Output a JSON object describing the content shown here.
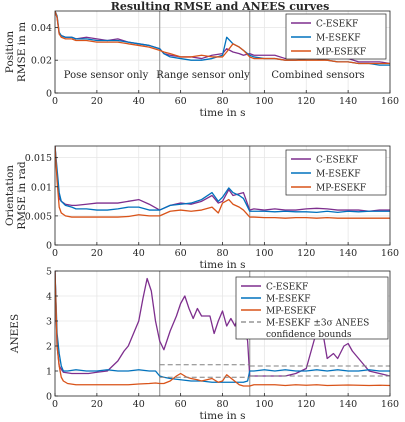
{
  "figure": {
    "title": "Resulting RMSE and ANEES curves"
  },
  "colors": {
    "C-ESEKF": "#7e2f8e",
    "M-ESEKF": "#0072bd",
    "MP-ESEKF": "#d95319",
    "bound": "#808080",
    "divider": "#a0a0a0"
  },
  "chart_data": [
    {
      "type": "line",
      "xlabel": "time in s",
      "ylabel": [
        "Position",
        "RMSE in m"
      ],
      "xlim": [
        0,
        160
      ],
      "ylim": [
        0,
        0.05
      ],
      "xticks": [
        0,
        20,
        40,
        60,
        80,
        100,
        120,
        140,
        160
      ],
      "yticks": [
        0,
        0.02,
        0.04
      ],
      "ytick_labels": [
        "0",
        "0.02",
        "0.04"
      ],
      "grid": true,
      "legend_position": "top-right",
      "dividers_x": [
        50,
        93
      ],
      "annotations": [
        {
          "text": "Pose sensor only",
          "x": 25,
          "y": 0.009
        },
        {
          "text": "Range sensor only",
          "x": 72,
          "y": 0.009
        },
        {
          "text": "Combined sensors",
          "x": 126,
          "y": 0.009
        }
      ],
      "series": [
        {
          "name": "C-ESEKF",
          "x": [
            0,
            1,
            2,
            3,
            5,
            8,
            10,
            15,
            20,
            25,
            30,
            35,
            40,
            45,
            50,
            52,
            55,
            60,
            65,
            70,
            75,
            80,
            82,
            85,
            88,
            90,
            93,
            95,
            100,
            105,
            110,
            115,
            120,
            125,
            130,
            135,
            140,
            145,
            150,
            155,
            160
          ],
          "y": [
            0.052,
            0.046,
            0.036,
            0.035,
            0.034,
            0.034,
            0.033,
            0.034,
            0.033,
            0.032,
            0.033,
            0.031,
            0.03,
            0.029,
            0.027,
            0.024,
            0.023,
            0.022,
            0.022,
            0.021,
            0.023,
            0.024,
            0.027,
            0.025,
            0.024,
            0.023,
            0.024,
            0.023,
            0.023,
            0.023,
            0.021,
            0.023,
            0.024,
            0.026,
            0.025,
            0.023,
            0.021,
            0.019,
            0.019,
            0.019,
            0.018
          ]
        },
        {
          "name": "M-ESEKF",
          "x": [
            0,
            1,
            2,
            3,
            5,
            8,
            10,
            15,
            20,
            25,
            30,
            35,
            40,
            45,
            50,
            52,
            55,
            60,
            65,
            70,
            75,
            80,
            82,
            85,
            88,
            90,
            93,
            95,
            100,
            105,
            110,
            115,
            120,
            125,
            130,
            135,
            140,
            145,
            150,
            155,
            160
          ],
          "y": [
            0.055,
            0.047,
            0.037,
            0.035,
            0.034,
            0.034,
            0.033,
            0.033,
            0.032,
            0.032,
            0.032,
            0.031,
            0.03,
            0.029,
            0.027,
            0.024,
            0.022,
            0.021,
            0.02,
            0.02,
            0.021,
            0.023,
            0.034,
            0.03,
            0.028,
            0.026,
            0.023,
            0.022,
            0.021,
            0.021,
            0.02,
            0.02,
            0.021,
            0.021,
            0.02,
            0.019,
            0.019,
            0.018,
            0.018,
            0.017,
            0.017
          ]
        },
        {
          "name": "MP-ESEKF",
          "x": [
            0,
            1,
            2,
            3,
            5,
            8,
            10,
            15,
            20,
            25,
            30,
            35,
            40,
            45,
            50,
            52,
            55,
            60,
            65,
            70,
            75,
            80,
            82,
            85,
            88,
            90,
            93,
            95,
            100,
            105,
            110,
            115,
            120,
            125,
            130,
            135,
            140,
            145,
            150,
            155,
            160
          ],
          "y": [
            0.054,
            0.046,
            0.036,
            0.034,
            0.033,
            0.033,
            0.032,
            0.032,
            0.031,
            0.031,
            0.031,
            0.03,
            0.029,
            0.028,
            0.026,
            0.025,
            0.024,
            0.022,
            0.022,
            0.023,
            0.022,
            0.022,
            0.025,
            0.03,
            0.028,
            0.026,
            0.022,
            0.021,
            0.021,
            0.021,
            0.02,
            0.02,
            0.02,
            0.02,
            0.02,
            0.019,
            0.019,
            0.018,
            0.018,
            0.018,
            0.018
          ]
        }
      ]
    },
    {
      "type": "line",
      "xlabel": "time in s",
      "ylabel": [
        "Orientation",
        "RMSE in rad"
      ],
      "xlim": [
        0,
        160
      ],
      "ylim": [
        0,
        0.017
      ],
      "xticks": [
        0,
        20,
        40,
        60,
        80,
        100,
        120,
        140,
        160
      ],
      "yticks": [
        0,
        0.005,
        0.01,
        0.015
      ],
      "ytick_labels": [
        "0",
        "0.005",
        "0.01",
        "0.015"
      ],
      "grid": true,
      "legend_position": "top-right",
      "dividers_x": [
        50,
        93
      ],
      "series": [
        {
          "name": "C-ESEKF",
          "x": [
            0,
            1,
            2,
            3,
            5,
            8,
            10,
            15,
            20,
            25,
            30,
            35,
            40,
            45,
            50,
            55,
            60,
            65,
            70,
            75,
            78,
            80,
            83,
            85,
            88,
            90,
            93,
            95,
            100,
            105,
            110,
            115,
            120,
            125,
            130,
            135,
            140,
            145,
            150,
            155,
            160
          ],
          "y": [
            0.017,
            0.012,
            0.008,
            0.0075,
            0.007,
            0.0068,
            0.0068,
            0.007,
            0.0072,
            0.0072,
            0.0072,
            0.0075,
            0.0078,
            0.007,
            0.006,
            0.0068,
            0.0072,
            0.007,
            0.0075,
            0.0085,
            0.0072,
            0.0075,
            0.0095,
            0.0085,
            0.0088,
            0.009,
            0.006,
            0.0062,
            0.006,
            0.0062,
            0.006,
            0.006,
            0.0062,
            0.0063,
            0.0062,
            0.006,
            0.006,
            0.006,
            0.0058,
            0.006,
            0.006
          ]
        },
        {
          "name": "M-ESEKF",
          "x": [
            0,
            1,
            2,
            3,
            5,
            8,
            10,
            15,
            20,
            25,
            30,
            35,
            40,
            45,
            50,
            55,
            60,
            65,
            70,
            75,
            78,
            80,
            83,
            85,
            88,
            90,
            93,
            95,
            100,
            105,
            110,
            115,
            120,
            125,
            130,
            135,
            140,
            145,
            150,
            155,
            160
          ],
          "y": [
            0.017,
            0.013,
            0.009,
            0.0075,
            0.0068,
            0.0065,
            0.0062,
            0.0062,
            0.006,
            0.006,
            0.0062,
            0.0065,
            0.0065,
            0.006,
            0.006,
            0.0068,
            0.007,
            0.0072,
            0.0078,
            0.009,
            0.0075,
            0.0082,
            0.0098,
            0.009,
            0.0085,
            0.008,
            0.0058,
            0.0058,
            0.0058,
            0.0057,
            0.0058,
            0.0057,
            0.0057,
            0.0056,
            0.0058,
            0.0056,
            0.0058,
            0.0057,
            0.0058,
            0.0058,
            0.0058
          ]
        },
        {
          "name": "MP-ESEKF",
          "x": [
            0,
            1,
            2,
            3,
            5,
            8,
            10,
            15,
            20,
            25,
            30,
            35,
            40,
            45,
            50,
            55,
            60,
            65,
            70,
            75,
            78,
            80,
            83,
            85,
            88,
            90,
            93,
            95,
            100,
            105,
            110,
            115,
            120,
            125,
            130,
            135,
            140,
            145,
            150,
            155,
            160
          ],
          "y": [
            0.017,
            0.011,
            0.0065,
            0.0055,
            0.005,
            0.0048,
            0.0048,
            0.0048,
            0.0048,
            0.0048,
            0.0048,
            0.0049,
            0.0052,
            0.005,
            0.005,
            0.0058,
            0.006,
            0.0058,
            0.006,
            0.0065,
            0.0055,
            0.0072,
            0.0078,
            0.007,
            0.0065,
            0.006,
            0.0048,
            0.0048,
            0.0047,
            0.0047,
            0.0046,
            0.0047,
            0.0047,
            0.0046,
            0.0047,
            0.0046,
            0.0046,
            0.0046,
            0.0046,
            0.0046,
            0.0046
          ]
        }
      ]
    },
    {
      "type": "line",
      "xlabel": "time in s",
      "ylabel": [
        "ANEES"
      ],
      "xlim": [
        0,
        160
      ],
      "ylim": [
        0,
        5
      ],
      "xticks": [
        0,
        20,
        40,
        60,
        80,
        100,
        120,
        140,
        160
      ],
      "yticks": [
        0,
        1,
        2,
        3,
        4,
        5
      ],
      "ytick_labels": [
        "0",
        "1",
        "2",
        "3",
        "4",
        "5"
      ],
      "grid": true,
      "legend_position": "top-right",
      "dividers_x": [
        50,
        93
      ],
      "confidence_bounds": {
        "name": "M-ESEKF ±3σ ANEES",
        "name2": "confidence bounds",
        "segments": [
          {
            "x": [
              50,
              93
            ],
            "y_upper": 1.25,
            "y_lower": 0.75
          },
          {
            "x": [
              93,
              160
            ],
            "y_upper": 1.2,
            "y_lower": 0.8
          }
        ]
      },
      "series": [
        {
          "name": "C-ESEKF",
          "x": [
            0,
            1,
            2,
            4,
            8,
            12,
            16,
            20,
            25,
            30,
            33,
            35,
            38,
            40,
            42,
            44,
            46,
            48,
            50,
            52,
            55,
            58,
            60,
            62,
            64,
            66,
            68,
            70,
            72,
            74,
            76,
            78,
            80,
            82,
            84,
            86,
            88,
            90,
            92,
            93,
            95,
            100,
            105,
            110,
            115,
            120,
            124,
            126,
            128,
            130,
            133,
            135,
            138,
            140,
            142,
            145,
            150,
            155,
            160
          ],
          "y": [
            5,
            2.0,
            1.2,
            0.95,
            0.9,
            0.9,
            0.9,
            0.95,
            1.0,
            1.4,
            1.8,
            2.0,
            2.6,
            3.0,
            3.9,
            4.7,
            4.2,
            3.0,
            2.2,
            1.85,
            2.6,
            3.2,
            3.7,
            4.0,
            3.5,
            3.1,
            3.5,
            3.2,
            3.2,
            3.2,
            2.5,
            3.0,
            3.4,
            2.8,
            3.1,
            2.8,
            3.4,
            2.9,
            2.2,
            0.8,
            0.8,
            0.8,
            0.8,
            0.8,
            0.9,
            1.1,
            2.3,
            3.0,
            2.5,
            1.5,
            1.7,
            1.5,
            2.0,
            2.1,
            1.8,
            1.5,
            1.0,
            0.9,
            0.8
          ]
        },
        {
          "name": "M-ESEKF",
          "x": [
            0,
            1,
            2,
            3,
            4,
            6,
            10,
            15,
            20,
            25,
            30,
            35,
            40,
            45,
            48,
            50,
            52,
            55,
            60,
            65,
            70,
            75,
            80,
            85,
            90,
            92,
            93,
            95,
            100,
            105,
            110,
            115,
            120,
            125,
            130,
            135,
            140,
            145,
            150,
            155,
            160
          ],
          "y": [
            5,
            2.5,
            1.7,
            1.2,
            1.0,
            1.0,
            1.05,
            1.0,
            1.0,
            1.05,
            1.0,
            1.0,
            1.05,
            1.0,
            1.0,
            0.8,
            0.75,
            0.7,
            0.65,
            0.6,
            0.6,
            0.55,
            0.55,
            0.55,
            0.55,
            0.6,
            1.0,
            1.0,
            1.05,
            1.0,
            1.05,
            1.0,
            1.0,
            1.05,
            1.0,
            1.05,
            1.0,
            1.0,
            1.05,
            1.0,
            1.0
          ]
        },
        {
          "name": "MP-ESEKF",
          "x": [
            0,
            1,
            2,
            3,
            4,
            6,
            10,
            15,
            20,
            25,
            30,
            35,
            40,
            45,
            48,
            50,
            52,
            55,
            58,
            60,
            63,
            65,
            68,
            70,
            75,
            78,
            80,
            82,
            85,
            88,
            90,
            93,
            95,
            100,
            105,
            110,
            115,
            120,
            125,
            130,
            135,
            140,
            145,
            150,
            155,
            160
          ],
          "y": [
            5,
            2.0,
            1.2,
            0.75,
            0.6,
            0.5,
            0.45,
            0.45,
            0.45,
            0.45,
            0.45,
            0.45,
            0.48,
            0.5,
            0.52,
            0.5,
            0.5,
            0.6,
            0.8,
            0.9,
            0.75,
            0.7,
            0.65,
            0.6,
            0.7,
            0.55,
            0.6,
            0.85,
            0.65,
            0.45,
            0.4,
            0.4,
            0.45,
            0.45,
            0.45,
            0.42,
            0.45,
            0.43,
            0.45,
            0.42,
            0.43,
            0.44,
            0.43,
            0.42,
            0.43,
            0.42
          ]
        }
      ]
    }
  ]
}
